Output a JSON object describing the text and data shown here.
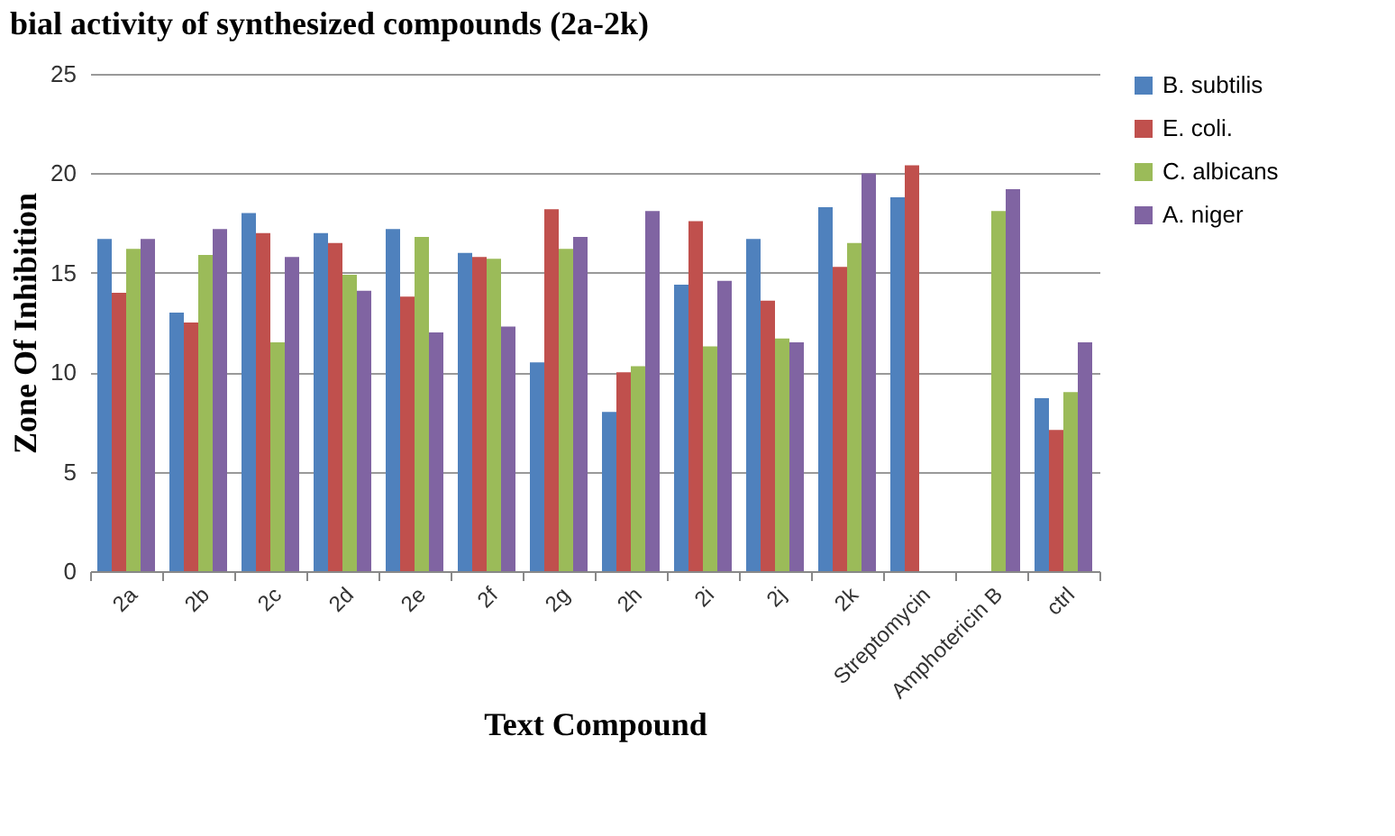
{
  "chart_data": {
    "type": "bar",
    "title": "bial activity of synthesized compounds (2a-2k)",
    "xlabel": "Text Compound",
    "ylabel": "Zone Of Inhibition",
    "categories": [
      "2a",
      "2b",
      "2c",
      "2d",
      "2e",
      "2f",
      "2g",
      "2h",
      "2i",
      "2j",
      "2k",
      "Streptomycin",
      "Amphotericin B",
      "ctrl"
    ],
    "series": [
      {
        "name": "B. subtilis",
        "color": "#4f81bd",
        "values": [
          16.7,
          13,
          18,
          17,
          17.2,
          16,
          10.5,
          8,
          14.4,
          16.7,
          18.3,
          18.8,
          null,
          8.7
        ]
      },
      {
        "name": "E. coli.",
        "color": "#c0504d",
        "values": [
          14,
          12.5,
          17,
          16.5,
          13.8,
          15.8,
          18.2,
          10,
          17.6,
          13.6,
          15.3,
          20.4,
          null,
          7.1
        ]
      },
      {
        "name": "C. albicans",
        "color": "#9bbb59",
        "values": [
          16.2,
          15.9,
          11.5,
          14.9,
          16.8,
          15.7,
          16.2,
          10.3,
          11.3,
          11.7,
          16.5,
          null,
          18.1,
          9
        ]
      },
      {
        "name": "A. niger",
        "color": "#8064a2",
        "values": [
          16.7,
          17.2,
          15.8,
          14.1,
          12,
          12.3,
          16.8,
          18.1,
          14.6,
          11.5,
          20,
          null,
          19.2,
          11.5
        ]
      }
    ],
    "ylim": [
      0,
      25
    ],
    "yticks": [
      0,
      5,
      10,
      15,
      20,
      25
    ],
    "grid": "y",
    "legend": "right"
  }
}
